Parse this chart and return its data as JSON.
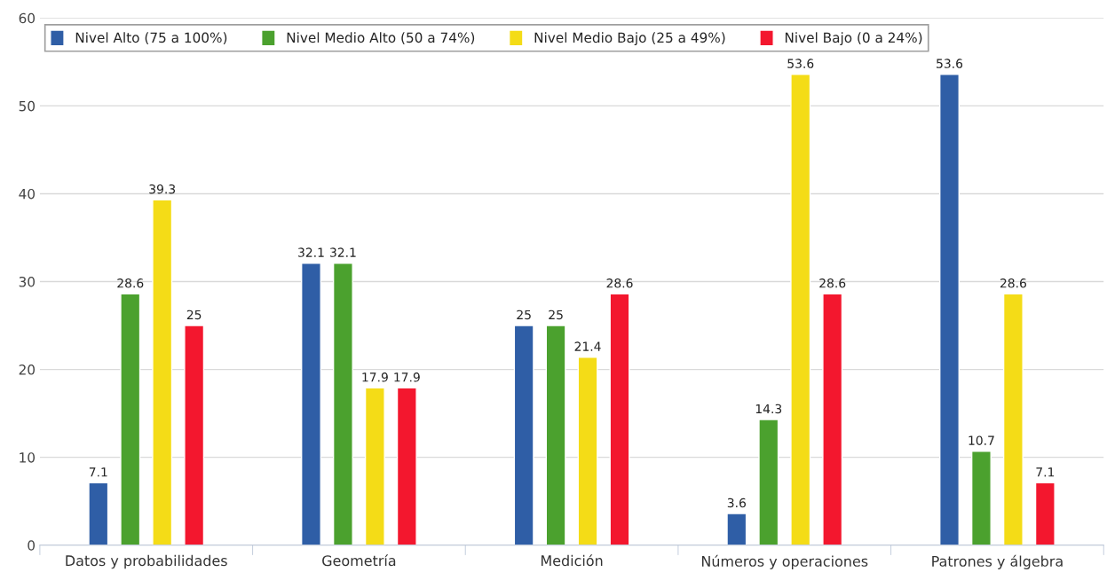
{
  "chart_data": {
    "type": "bar",
    "categories": [
      "Datos y probabilidades",
      "Geometría",
      "Medición",
      "Números y operaciones",
      "Patrones y álgebra"
    ],
    "series": [
      {
        "name": "Nivel Alto (75 a 100%)",
        "color": "#2f5ea6",
        "values": [
          7.1,
          32.1,
          25,
          3.6,
          53.6
        ]
      },
      {
        "name": "Nivel Medio Alto (50 a 74%)",
        "color": "#4ba12e",
        "values": [
          28.6,
          32.1,
          25,
          14.3,
          10.7
        ]
      },
      {
        "name": "Nivel Medio Bajo (25 a 49%)",
        "color": "#f4dc17",
        "values": [
          39.3,
          17.9,
          21.4,
          53.6,
          28.6
        ]
      },
      {
        "name": "Nivel Bajo (0 a 24%)",
        "color": "#f3172e",
        "values": [
          25,
          17.9,
          28.6,
          28.6,
          7.1
        ]
      }
    ],
    "ylim": [
      0,
      60
    ],
    "yticks": [
      0,
      10,
      20,
      30,
      40,
      50,
      60
    ],
    "grid": "y",
    "legend": "top",
    "data_labels": true
  }
}
